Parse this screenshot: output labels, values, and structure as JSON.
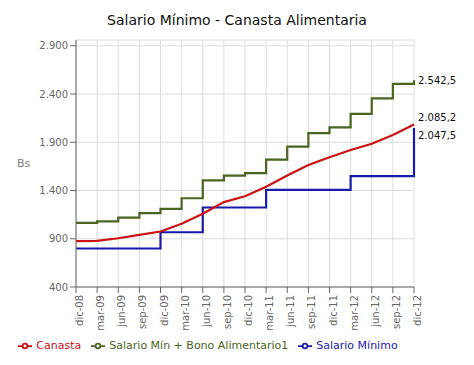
{
  "chart_data": {
    "type": "line",
    "title": "Salario Mínimo - Canasta Alimentaria",
    "y_label": "Bs",
    "categories": [
      "dic-08",
      "mar-09",
      "jun-09",
      "sep-09",
      "dic-09",
      "mar-10",
      "jun-10",
      "sep-10",
      "dic-10",
      "mar-11",
      "jun-11",
      "sep-11",
      "dic-11",
      "mar-12",
      "jun-12",
      "sep-12",
      "dic-12"
    ],
    "series": [
      {
        "name": "Salario Mínimo",
        "color": "#1a1aaa",
        "type": "step",
        "values": [
          799,
          799,
          799,
          799,
          967.5,
          967.5,
          1223.89,
          1223.89,
          1223.89,
          1407.47,
          1407.47,
          1407.47,
          1407.47,
          1548.21,
          1548.21,
          1548.21,
          2047.5
        ]
      },
      {
        "name": "Canasta",
        "color": "#cc1111",
        "type": "line",
        "values": [
          875,
          878,
          905,
          940,
          975,
          1055,
          1160,
          1280,
          1340,
          1440,
          1555,
          1665,
          1745,
          1820,
          1885,
          1975,
          2085.2
        ]
      },
      {
        "name": "Salario Mín + Bono Alimentario1",
        "color": "#4a6520",
        "type": "step",
        "values": [
          1065,
          1080,
          1120,
          1165,
          1210,
          1320,
          1505,
          1555,
          1580,
          1720,
          1855,
          1995,
          2055,
          2195,
          2355,
          2505,
          2542.5
        ]
      }
    ],
    "annotations": [
      {
        "text": "2.047,5",
        "x": "dic-12",
        "y": 2047.5
      },
      {
        "text": "2.085,2",
        "x": "dic-12",
        "y": 2085.2
      },
      {
        "text": "2.542,5",
        "x": "dic-12",
        "y": 2542.5
      }
    ],
    "ylim": [
      400,
      2960
    ],
    "yticks": [
      400,
      900,
      {
        "value": 1400,
        "label": "1.400"
      },
      {
        "value": 1900,
        "label": "1.900"
      },
      {
        "value": 2400,
        "label": "2.400"
      },
      {
        "value": 2900,
        "label": "2.900"
      }
    ],
    "grid": true,
    "legend": "bottom"
  }
}
